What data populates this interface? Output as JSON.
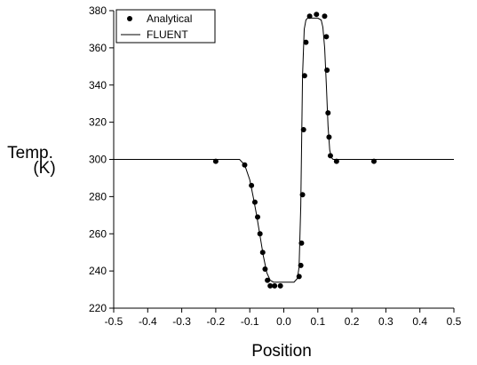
{
  "chart_data": {
    "type": "scatter",
    "xlabel": "Position",
    "ylabel_line1": "Temp.",
    "ylabel_line2": "(K)",
    "xlim": [
      -0.5,
      0.5
    ],
    "ylim": [
      220,
      380
    ],
    "x_ticks": [
      -0.5,
      -0.4,
      -0.3,
      -0.2,
      -0.1,
      0.0,
      0.1,
      0.2,
      0.3,
      0.4,
      0.5
    ],
    "x_tick_labels": [
      "-0.5",
      "-0.4",
      "-0.3",
      "-0.2",
      "-0.1",
      "0.0",
      "0.1",
      "0.2",
      "0.3",
      "0.4",
      "0.5"
    ],
    "y_ticks": [
      220,
      240,
      260,
      280,
      300,
      320,
      340,
      360,
      380
    ],
    "y_tick_labels": [
      "220",
      "240",
      "260",
      "280",
      "300",
      "320",
      "340",
      "360",
      "380"
    ],
    "grid": false,
    "legend_position": "top-left",
    "series": [
      {
        "name": "Analytical",
        "style": "markers",
        "color": "#000000",
        "x": [
          -0.2,
          -0.115,
          -0.095,
          -0.085,
          -0.077,
          -0.07,
          -0.062,
          -0.055,
          -0.048,
          -0.04,
          -0.027,
          -0.01,
          0.045,
          0.05,
          0.052,
          0.055,
          0.058,
          0.061,
          0.065,
          0.076,
          0.096,
          0.12,
          0.125,
          0.127,
          0.13,
          0.133,
          0.137,
          0.155,
          0.265
        ],
        "y": [
          299,
          297,
          286,
          277,
          269,
          260,
          250,
          241,
          235,
          232,
          232,
          232,
          237,
          243,
          255,
          281,
          316,
          345,
          363,
          377,
          378,
          377,
          366,
          348,
          325,
          312,
          302,
          299,
          299
        ]
      },
      {
        "name": "FLUENT",
        "style": "line",
        "color": "#000000",
        "x": [
          -0.5,
          -0.13,
          -0.115,
          -0.1,
          -0.09,
          -0.08,
          -0.07,
          -0.06,
          -0.05,
          -0.04,
          -0.03,
          -0.02,
          -0.01,
          0.0,
          0.01,
          0.02,
          0.03,
          0.04,
          0.045,
          0.05,
          0.055,
          0.06,
          0.065,
          0.07,
          0.08,
          0.1,
          0.11,
          0.115,
          0.12,
          0.125,
          0.13,
          0.135,
          0.14,
          0.145,
          0.16,
          0.5
        ],
        "y": [
          300,
          300,
          297,
          289,
          280,
          270,
          259,
          248,
          239,
          235,
          234,
          234,
          234,
          234,
          234,
          234,
          234,
          236,
          242,
          275,
          345,
          370,
          375,
          376,
          376,
          376,
          375,
          371,
          360,
          340,
          318,
          305,
          301,
          300,
          300,
          300
        ]
      }
    ]
  }
}
